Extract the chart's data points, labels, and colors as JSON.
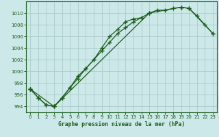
{
  "title": "Graphe pression niveau de la mer (hPa)",
  "bg_color": "#cce8e8",
  "grid_color": "#aacccc",
  "line_color": "#1a5c1a",
  "ylim": [
    993.0,
    1012.0
  ],
  "xlim": [
    -0.5,
    23.5
  ],
  "yticks": [
    994,
    996,
    998,
    1000,
    1002,
    1004,
    1006,
    1008,
    1010
  ],
  "xticks": [
    0,
    1,
    2,
    3,
    4,
    5,
    6,
    7,
    8,
    9,
    10,
    11,
    12,
    13,
    14,
    15,
    16,
    17,
    18,
    19,
    20,
    21,
    22,
    23
  ],
  "line1_x": [
    0,
    1,
    2,
    3,
    4,
    5,
    6,
    7,
    8,
    9,
    10,
    11,
    12,
    13,
    14
  ],
  "line1_y": [
    997.0,
    995.5,
    994.3,
    994.0,
    995.5,
    997.2,
    999.2,
    1000.5,
    1002.0,
    1004.0,
    1006.0,
    1007.2,
    1008.5,
    1009.0,
    1009.2
  ],
  "line2_x": [
    0,
    1,
    2,
    3,
    4,
    5,
    6,
    7,
    8,
    9,
    10,
    11,
    12,
    13,
    14,
    15,
    16,
    17,
    18,
    19,
    20,
    21,
    22,
    23
  ],
  "line2_y": [
    997.0,
    995.5,
    994.3,
    994.0,
    995.5,
    997.2,
    998.8,
    1000.5,
    1002.0,
    1003.5,
    1005.0,
    1006.5,
    1007.5,
    1008.5,
    1009.2,
    1010.0,
    1010.5,
    1010.5,
    1010.8,
    1011.0,
    1010.8,
    1009.5,
    1008.0,
    1006.5
  ],
  "line3_x": [
    0,
    3,
    15,
    19,
    20,
    23
  ],
  "line3_y": [
    997.0,
    994.0,
    1010.0,
    1011.0,
    1010.8,
    1006.5
  ]
}
